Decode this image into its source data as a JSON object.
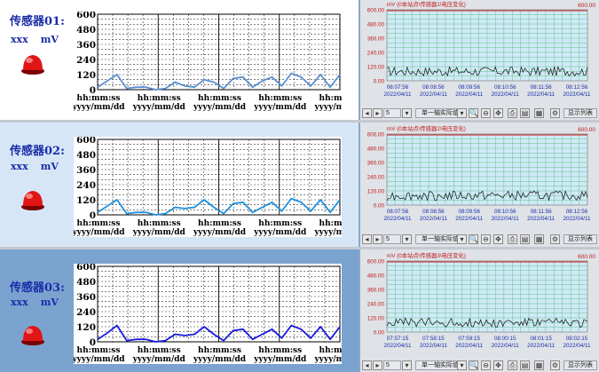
{
  "sensors": [
    {
      "title": "传感器01:",
      "value": "xxx",
      "unit": "mV",
      "left_chart": {
        "y_ticks": [
          "600",
          "480",
          "360",
          "240",
          "120",
          "0"
        ],
        "time_label": "hh:mm:ss",
        "date_label": "yyyy/mm/dd",
        "color": "#5b8fd0",
        "values": [
          20,
          70,
          120,
          10,
          20,
          20,
          0,
          10,
          60,
          30,
          20,
          80,
          60,
          10,
          90,
          100,
          20,
          70,
          100,
          30,
          130,
          100,
          30,
          120,
          20,
          120
        ]
      },
      "right_chart": {
        "title": "mV (0本站点\\传感器1\\电压变化)",
        "max_label": "600.00",
        "y_ticks": [
          "600.00",
          "480.00",
          "360.00",
          "240.00",
          "120.00",
          "0.00"
        ],
        "times": [
          "08:07:56",
          "08:08:56",
          "08:09:56",
          "08:10:56",
          "08:11:56",
          "08:12:56"
        ],
        "dates": [
          "2022/04/11",
          "2022/04/11",
          "2022/04/11",
          "2022/04/11",
          "2022/04/11",
          "2022/04/11"
        ],
        "dropdown": "单一轴实际值",
        "list_button": "显示列表",
        "small_field": "5"
      }
    },
    {
      "title": "传感器02:",
      "value": "xxx",
      "unit": "mV",
      "left_chart": {
        "y_ticks": [
          "600",
          "480",
          "360",
          "240",
          "120",
          "0"
        ],
        "time_label": "hh:mm:ss",
        "date_label": "yyyy/mm/dd",
        "color": "#1e90e0",
        "values": [
          20,
          70,
          120,
          10,
          20,
          20,
          0,
          10,
          60,
          50,
          60,
          120,
          60,
          10,
          90,
          100,
          20,
          60,
          100,
          30,
          130,
          100,
          30,
          120,
          20,
          120
        ]
      },
      "right_chart": {
        "title": "mV (0本站点\\传感器2\\电压变化)",
        "max_label": "600.00",
        "y_ticks": [
          "600.00",
          "480.00",
          "360.00",
          "240.00",
          "120.00",
          "0.00"
        ],
        "times": [
          "08:07:56",
          "08:08:56",
          "08:09:56",
          "08:10:56",
          "08:11:56",
          "08:12:56"
        ],
        "dates": [
          "2022/04/11",
          "2022/04/11",
          "2022/04/11",
          "2022/04/11",
          "2022/04/11",
          "2022/04/11"
        ],
        "dropdown": "单一轴实际值",
        "list_button": "显示列表",
        "small_field": "5"
      }
    },
    {
      "title": "传感器03:",
      "value": "xxx",
      "unit": "mV",
      "left_chart": {
        "y_ticks": [
          "600",
          "480",
          "360",
          "240",
          "120",
          "0"
        ],
        "time_label": "hh:mm:ss",
        "date_label": "yyyy/mm/dd",
        "color": "#1a1ae0",
        "values": [
          20,
          70,
          130,
          10,
          20,
          20,
          0,
          10,
          60,
          50,
          60,
          120,
          60,
          10,
          90,
          100,
          20,
          60,
          100,
          30,
          130,
          100,
          30,
          120,
          20,
          120
        ]
      },
      "right_chart": {
        "title": "mV (0本站点\\传感器3\\电压变化)",
        "max_label": "600.00",
        "y_ticks": [
          "600.00",
          "480.00",
          "360.00",
          "240.00",
          "120.00",
          "0.00"
        ],
        "times": [
          "07:57:15",
          "07:58:15",
          "07:59:15",
          "08:00:15",
          "08:01:15",
          "08:02:15"
        ],
        "dates": [
          "2022/04/11",
          "2022/04/11",
          "2022/04/11",
          "2022/04/11",
          "2022/04/11",
          "2022/04/11"
        ],
        "dropdown": "单一轴实际值",
        "list_button": "显示列表",
        "small_field": "5"
      }
    }
  ]
}
